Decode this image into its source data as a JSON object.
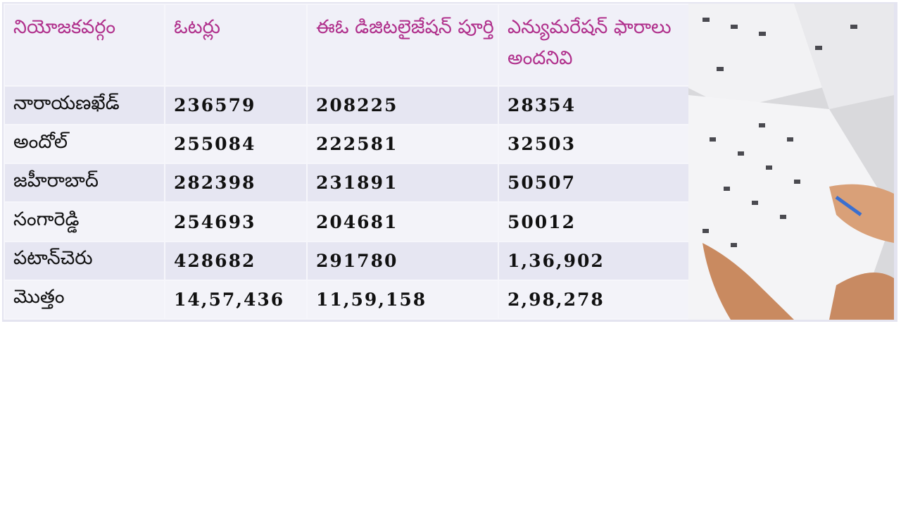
{
  "table": {
    "header": [
      "నియోజకవర్గం",
      "ఓటర్లు",
      "ఈఓ డిజిటలైజేషన్ పూర్తి",
      "ఎన్యుమరేషన్ ఫారాలు అందనివి"
    ],
    "rows": [
      [
        "నారాయణఖేడ్",
        "236579",
        "208225",
        "28354"
      ],
      [
        "అందోల్",
        "255084",
        "222581",
        "32503"
      ],
      [
        "జహీరాబాద్",
        "282398",
        "231891",
        "50507"
      ],
      [
        "సంగారెడ్డి",
        "254693",
        "204681",
        "50012"
      ],
      [
        "పటాన్‌చెరు",
        "428682",
        "291780",
        "1,36,902"
      ],
      [
        "మొత్తం",
        "14,57,436",
        "11,59,158",
        "2,98,278"
      ]
    ]
  }
}
